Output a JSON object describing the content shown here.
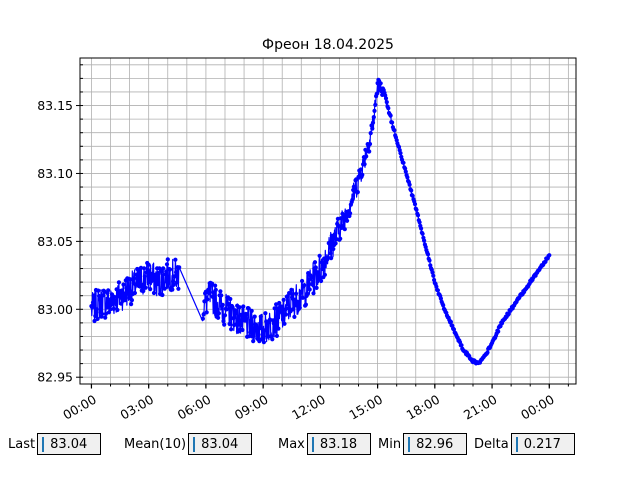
{
  "chart_data": {
    "type": "line",
    "title": "Фреон 18.04.2025",
    "xlabel": "",
    "ylabel": "",
    "x_ticks": [
      "00:00",
      "03:00",
      "06:00",
      "09:00",
      "12:00",
      "15:00",
      "18:00",
      "21:00",
      "00:00"
    ],
    "x_tick_hours": [
      0,
      3,
      6,
      9,
      12,
      15,
      18,
      21,
      24
    ],
    "xlim_hours": [
      -0.6,
      25.4
    ],
    "y_ticks": [
      "82.95",
      "83.00",
      "83.05",
      "83.10",
      "83.15"
    ],
    "y_tick_values": [
      82.95,
      83.0,
      83.05,
      83.1,
      83.15
    ],
    "ylim": [
      82.945,
      83.185
    ],
    "grid": true,
    "color": "#0000ff",
    "series": [
      {
        "hours": [
          0,
          0.5,
          1,
          1.5,
          2,
          2.5,
          3,
          3.5,
          4,
          4.6,
          5.2,
          5.8,
          6.2,
          7,
          8,
          9,
          10,
          10.5,
          11,
          11.5,
          12,
          12.5,
          13,
          13.5,
          14,
          14.5,
          14.8,
          15,
          15.3,
          15.6,
          16,
          17,
          18,
          18.5,
          19,
          19.5,
          20,
          20.3,
          20.6,
          21,
          21.5,
          22,
          23,
          24
        ],
        "values": [
          83.0,
          83.005,
          83.005,
          83.01,
          83.015,
          83.02,
          83.025,
          83.02,
          83.025,
          83.025,
          83.01,
          83.0,
          83.01,
          83.0,
          82.99,
          82.985,
          82.995,
          83.005,
          83.01,
          83.02,
          83.03,
          83.045,
          83.06,
          83.075,
          83.095,
          83.12,
          83.14,
          83.165,
          83.16,
          83.145,
          83.125,
          83.075,
          83.02,
          83.0,
          82.985,
          82.97,
          82.962,
          82.96,
          82.965,
          82.975,
          82.99,
          83.0,
          83.02,
          83.04
        ],
        "noise": [
          0.012,
          0.012,
          0.012,
          0.012,
          0.012,
          0.012,
          0.012,
          0.012,
          0.012,
          0.012,
          0.01,
          0.01,
          0.012,
          0.012,
          0.012,
          0.012,
          0.012,
          0.012,
          0.012,
          0.012,
          0.012,
          0.012,
          0.01,
          0.009,
          0.009,
          0.008,
          0.008,
          0.007,
          0.003,
          0.002,
          0.001,
          0.001,
          0.001,
          0.001,
          0.001,
          0.001,
          0.001,
          0.001,
          0.001,
          0.001,
          0.001,
          0.001,
          0.001,
          0.001
        ]
      }
    ]
  },
  "stats": {
    "last_label": "Last",
    "last_value": "83.04",
    "mean_label": "Mean(10)",
    "mean_value": "83.04",
    "max_label": "Max",
    "max_value": "83.18",
    "min_label": "Min",
    "min_value": "82.96",
    "delta_label": "Delta",
    "delta_value": "0.217"
  }
}
